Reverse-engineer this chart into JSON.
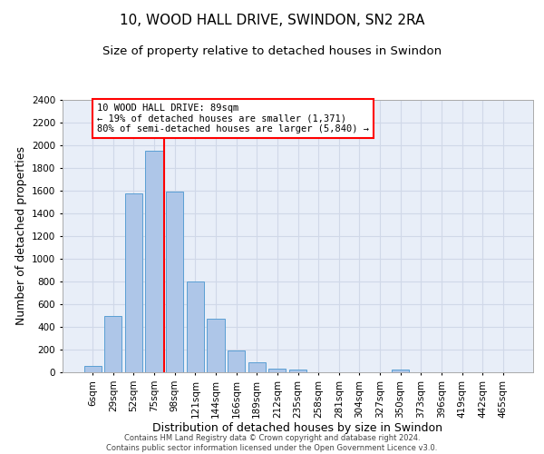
{
  "title": "10, WOOD HALL DRIVE, SWINDON, SN2 2RA",
  "subtitle": "Size of property relative to detached houses in Swindon",
  "xlabel": "Distribution of detached houses by size in Swindon",
  "ylabel": "Number of detached properties",
  "categories": [
    "6sqm",
    "29sqm",
    "52sqm",
    "75sqm",
    "98sqm",
    "121sqm",
    "144sqm",
    "166sqm",
    "189sqm",
    "212sqm",
    "235sqm",
    "258sqm",
    "281sqm",
    "304sqm",
    "327sqm",
    "350sqm",
    "373sqm",
    "396sqm",
    "419sqm",
    "442sqm",
    "465sqm"
  ],
  "values": [
    60,
    500,
    1580,
    1950,
    1590,
    800,
    475,
    195,
    90,
    35,
    28,
    0,
    0,
    0,
    0,
    25,
    0,
    0,
    0,
    0,
    0
  ],
  "bar_color": "#aec6e8",
  "bar_edge_color": "#5a9fd4",
  "grid_color": "#d0d8e8",
  "background_color": "#e8eef8",
  "vline_color": "red",
  "vline_pos": 3.5,
  "annotation_text": "10 WOOD HALL DRIVE: 89sqm\n← 19% of detached houses are smaller (1,371)\n80% of semi-detached houses are larger (5,840) →",
  "ylim": [
    0,
    2400
  ],
  "yticks": [
    0,
    200,
    400,
    600,
    800,
    1000,
    1200,
    1400,
    1600,
    1800,
    2000,
    2200,
    2400
  ],
  "footer_line1": "Contains HM Land Registry data © Crown copyright and database right 2024.",
  "footer_line2": "Contains public sector information licensed under the Open Government Licence v3.0.",
  "title_fontsize": 11,
  "subtitle_fontsize": 9.5,
  "ylabel_fontsize": 9,
  "xlabel_fontsize": 9,
  "tick_fontsize": 7.5,
  "annotation_fontsize": 7.5,
  "footer_fontsize": 6
}
